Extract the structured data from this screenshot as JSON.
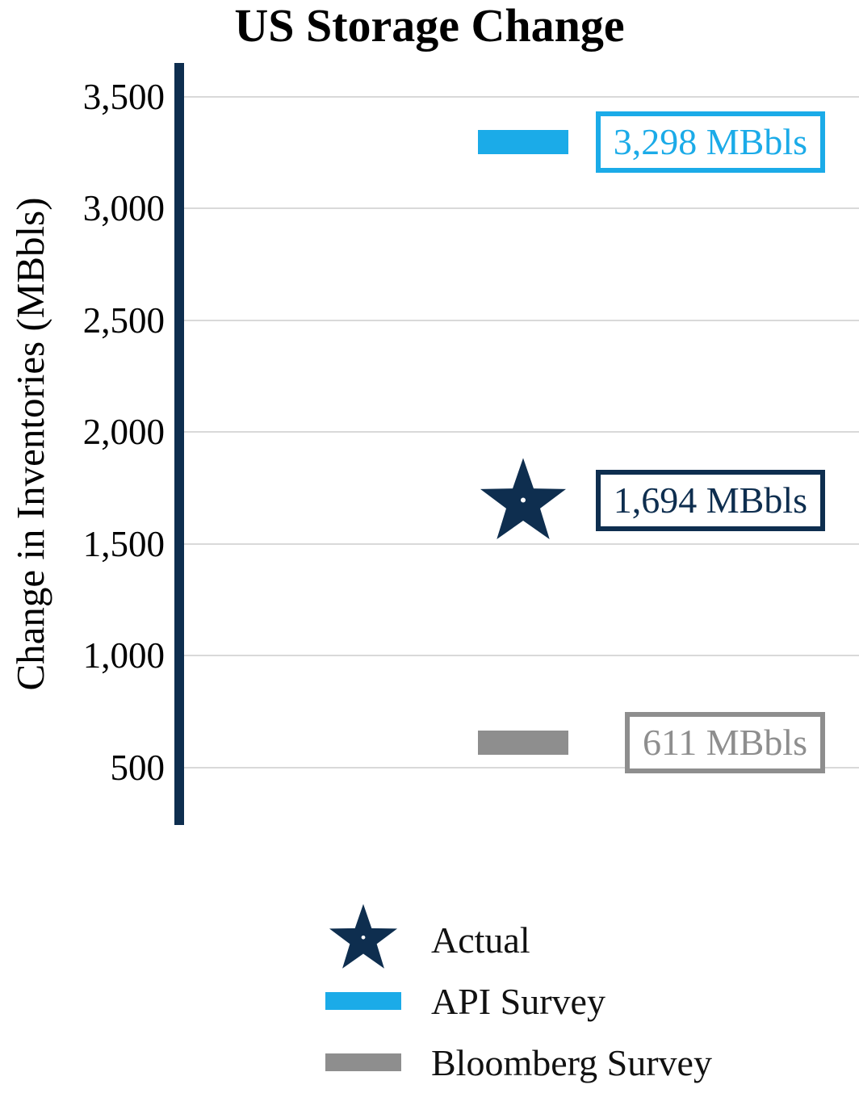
{
  "chart_data": {
    "type": "scatter",
    "title": "US Storage Change",
    "ylabel": "Change in Inventories (MBbls)",
    "ylim": [
      250,
      3650
    ],
    "yticks": [
      3500,
      3000,
      2500,
      2000,
      1500,
      1000,
      500
    ],
    "ytick_labels": [
      "3,500",
      "3,000",
      "2,500",
      "2,000",
      "1,500",
      "1,000",
      "500"
    ],
    "grid": true,
    "legend_position": "bottom",
    "series": [
      {
        "name": "Actual",
        "marker": "star",
        "color": "#0e2e4f",
        "value": 1694,
        "annotation": "1,694 MBbls"
      },
      {
        "name": "API Survey",
        "marker": "bar",
        "color": "#1babe8",
        "value": 3298,
        "annotation": "3,298 MBbls"
      },
      {
        "name": "Bloomberg Survey",
        "marker": "bar",
        "color": "#8e8e8e",
        "value": 611,
        "annotation": "611 MBbls"
      }
    ],
    "colors": {
      "axis": "#0e2e4f",
      "gridline": "#d9d9d9",
      "text": "#000000"
    }
  }
}
